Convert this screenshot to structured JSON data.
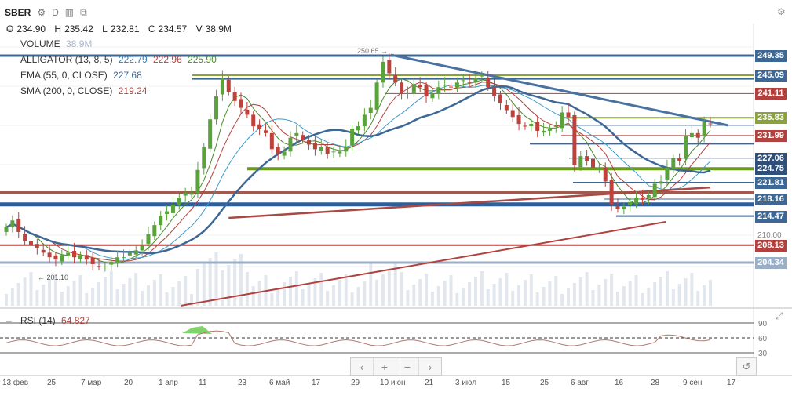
{
  "header": {
    "symbol": "SBER",
    "interval": "D",
    "icons": [
      "gear-icon",
      "bar-chart-icon",
      "compare-icon"
    ]
  },
  "ohlc": {
    "o_label": "O",
    "o": "234.90",
    "h_label": "H",
    "h": "235.42",
    "l_label": "L",
    "l": "232.81",
    "c_label": "C",
    "c": "234.57",
    "v_label": "V",
    "v": "38.9M"
  },
  "indicators": {
    "volume": {
      "name": "VOLUME",
      "value": "38.9M"
    },
    "alligator": {
      "name": "ALLIGATOR (13, 8, 5)",
      "v1": "222.79",
      "v2": "222.96",
      "v3": "225.90"
    },
    "ema": {
      "name": "EMA (55, 0, CLOSE)",
      "value": "227.68"
    },
    "sma": {
      "name": "SMA (200, 0, CLOSE)",
      "value": "219.24"
    },
    "rsi": {
      "name": "RSI (14)",
      "value": "64.827"
    }
  },
  "price_tags": [
    {
      "label": "249.35",
      "color": "#3d6896"
    },
    {
      "label": "245.09",
      "color": "#3d6896"
    },
    {
      "label": "241.11",
      "color": "#b0413e"
    },
    {
      "label": "235.83",
      "color": "#8aa23c"
    },
    {
      "label": "231.99",
      "color": "#b0413e"
    },
    {
      "label": "227.06",
      "color": "#2f4f7a"
    },
    {
      "label": "224.75",
      "color": "#2f4f7a"
    },
    {
      "label": "221.81",
      "color": "#3d6896"
    },
    {
      "label": "218.16",
      "color": "#3d6896"
    },
    {
      "label": "214.47",
      "color": "#3d6896"
    },
    {
      "label": "208.13",
      "color": "#b0413e"
    },
    {
      "label": "204.34",
      "color": "#9aaec8"
    }
  ],
  "annotations": {
    "high": "250.65",
    "low": "201.10"
  },
  "nav": {
    "left": "‹",
    "zoom_in": "+",
    "zoom_out": "−",
    "right": "›"
  },
  "chart_data": {
    "type": "candlestick",
    "y_axis_labels": [
      "210.00"
    ],
    "rsi_axis_labels": [
      "90",
      "60",
      "30"
    ],
    "x_labels": [
      "13 фев",
      "25",
      "7 мар",
      "20",
      "1 апр",
      "11",
      "23",
      "6 май",
      "17",
      "29",
      "10 июн",
      "21",
      "3 июл",
      "15",
      "25",
      "6 авг",
      "16",
      "28",
      "9 сен",
      "17"
    ],
    "close": [
      212.0,
      213.5,
      211.0,
      209.0,
      208.0,
      207.5,
      206.5,
      205.5,
      205.0,
      206.0,
      206.5,
      205.5,
      206.0,
      205.0,
      204.0,
      203.5,
      203.5,
      204.5,
      205.5,
      205.5,
      206.5,
      207.0,
      208.0,
      210.5,
      212.5,
      214.5,
      215.5,
      217.0,
      218.5,
      219.5,
      219.5,
      224.5,
      229.5,
      235.5,
      240.5,
      244.5,
      241.5,
      239.5,
      238.0,
      236.5,
      234.0,
      233.5,
      232.5,
      229.0,
      228.0,
      228.5,
      231.5,
      232.5,
      231.0,
      230.0,
      229.0,
      229.5,
      228.0,
      228.5,
      228.5,
      229.5,
      233.5,
      234.0,
      236.5,
      238.0,
      243.5,
      248.0,
      245.5,
      243.5,
      241.0,
      241.5,
      243.0,
      242.5,
      240.5,
      241.0,
      242.5,
      243.0,
      242.5,
      243.5,
      244.0,
      243.5,
      244.5,
      245.0,
      242.5,
      240.5,
      239.0,
      237.5,
      236.0,
      234.5,
      234.0,
      234.5,
      233.0,
      233.0,
      233.5,
      234.0,
      237.0,
      236.0,
      225.5,
      227.5,
      226.5,
      225.0,
      225.0,
      222.0,
      217.0,
      216.0,
      216.5,
      217.5,
      218.5,
      218.0,
      219.0,
      221.5,
      222.0,
      225.0,
      227.0,
      226.5,
      232.0,
      232.5,
      231.5,
      235.0,
      234.5
    ],
    "volume_note": "Volume histogram below price",
    "rsi_last": 64.827
  }
}
